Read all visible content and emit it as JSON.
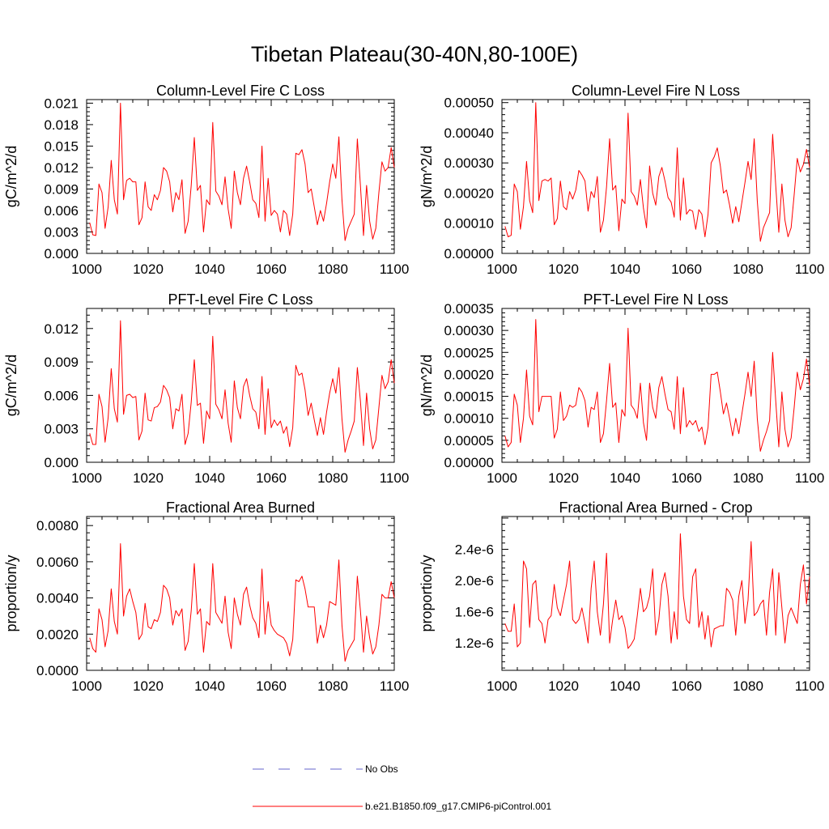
{
  "title": "Tibetan Plateau(30-40N,80-100E)",
  "line_color": "#ff0000",
  "obs_color": "#6666cc",
  "legend": {
    "obs": "No Obs",
    "model": "b.e21.B1850.f09_g17.CMIP6-piControl.001"
  },
  "chart_data": [
    {
      "type": "line",
      "title": "Column-Level Fire C Loss",
      "xlabel": "",
      "ylabel": "gC/m^2/d",
      "xlim": [
        1000,
        1100
      ],
      "ylim": [
        0,
        0.0215
      ],
      "xticks": [
        1000,
        1020,
        1040,
        1060,
        1080,
        1100
      ],
      "yticks": [
        0,
        0.003,
        0.006,
        0.009,
        0.012,
        0.015,
        0.018,
        0.021
      ],
      "ytick_labels": [
        "0.000",
        "0.003",
        "0.006",
        "0.009",
        "0.012",
        "0.015",
        "0.018",
        "0.021"
      ],
      "x_start": 1001,
      "values": [
        0.0043,
        0.0026,
        0.0025,
        0.0097,
        0.0085,
        0.0035,
        0.0065,
        0.013,
        0.0075,
        0.0055,
        0.021,
        0.0075,
        0.0102,
        0.0105,
        0.01,
        0.01,
        0.004,
        0.005,
        0.01,
        0.0065,
        0.006,
        0.0082,
        0.0075,
        0.0088,
        0.012,
        0.0115,
        0.01,
        0.0058,
        0.0085,
        0.0075,
        0.0103,
        0.0028,
        0.0045,
        0.0095,
        0.0162,
        0.0088,
        0.0095,
        0.003,
        0.0075,
        0.0068,
        0.0183,
        0.0087,
        0.008,
        0.0068,
        0.0107,
        0.0062,
        0.0035,
        0.0115,
        0.0085,
        0.0068,
        0.0105,
        0.0122,
        0.01,
        0.0075,
        0.007,
        0.005,
        0.015,
        0.0045,
        0.0105,
        0.0053,
        0.006,
        0.0055,
        0.003,
        0.006,
        0.0055,
        0.0025,
        0.0055,
        0.014,
        0.0138,
        0.0145,
        0.0125,
        0.0085,
        0.009,
        0.0065,
        0.004,
        0.006,
        0.0045,
        0.007,
        0.01,
        0.0125,
        0.0105,
        0.0163,
        0.0075,
        0.0018,
        0.0035,
        0.0045,
        0.0055,
        0.016,
        0.0095,
        0.0025,
        0.0095,
        0.0045,
        0.002,
        0.0035,
        0.0085,
        0.0128,
        0.0115,
        0.012,
        0.0148,
        0.012
      ]
    },
    {
      "type": "line",
      "title": "Column-Level Fire N Loss",
      "xlabel": "",
      "ylabel": "gN/m^2/d",
      "xlim": [
        1000,
        1100
      ],
      "ylim": [
        0,
        0.00051
      ],
      "xticks": [
        1000,
        1020,
        1040,
        1060,
        1080,
        1100
      ],
      "yticks": [
        0,
        0.0001,
        0.0002,
        0.0003,
        0.0004,
        0.0005
      ],
      "ytick_labels": [
        "0.00000",
        "0.00010",
        "0.00020",
        "0.00030",
        "0.00040",
        "0.00050"
      ],
      "x_start": 1001,
      "values": [
        9e-05,
        5.5e-05,
        6e-05,
        0.00023,
        0.000205,
        8e-05,
        0.000155,
        0.000305,
        0.000175,
        0.000135,
        0.0005,
        0.000175,
        0.00024,
        0.000245,
        0.00024,
        0.00025,
        9.5e-05,
        0.000115,
        0.00024,
        0.000155,
        0.000145,
        0.000205,
        0.00018,
        0.00021,
        0.000275,
        0.00026,
        0.00024,
        0.00014,
        0.000205,
        0.000185,
        0.000255,
        7e-05,
        0.00011,
        0.00022,
        0.00038,
        0.00021,
        0.000225,
        7.5e-05,
        0.00018,
        0.000165,
        0.000465,
        0.000205,
        0.00019,
        0.00016,
        0.000245,
        0.00015,
        8.5e-05,
        0.00029,
        0.0002,
        0.00016,
        0.000255,
        0.000285,
        0.00024,
        0.000185,
        0.00017,
        0.00012,
        0.00035,
        0.00011,
        0.00025,
        0.00013,
        0.000145,
        0.00014,
        8e-05,
        0.000145,
        0.00013,
        5.5e-05,
        0.00013,
        0.0003,
        0.00032,
        0.00035,
        0.00029,
        0.0002,
        0.00021,
        0.00016,
        0.0001,
        0.000155,
        0.000105,
        0.00017,
        0.000235,
        0.000305,
        0.000245,
        0.00038,
        0.000175,
        4e-05,
        8.5e-05,
        0.00011,
        0.000135,
        0.000395,
        0.000225,
        7e-05,
        0.00023,
        0.00011,
        5.5e-05,
        8.5e-05,
        0.000195,
        0.000315,
        0.00027,
        0.000295,
        0.000345,
        0.000285
      ]
    },
    {
      "type": "line",
      "title": "PFT-Level Fire C Loss",
      "xlabel": "",
      "ylabel": "gC/m^2/d",
      "xlim": [
        1000,
        1100
      ],
      "ylim": [
        0,
        0.0138
      ],
      "xticks": [
        1000,
        1020,
        1040,
        1060,
        1080,
        1100
      ],
      "yticks": [
        0,
        0.003,
        0.006,
        0.009,
        0.012
      ],
      "ytick_labels": [
        "0.000",
        "0.003",
        "0.006",
        "0.009",
        "0.012"
      ],
      "x_start": 1001,
      "values": [
        0.0026,
        0.0016,
        0.0016,
        0.0061,
        0.005,
        0.0018,
        0.004,
        0.0084,
        0.0048,
        0.0036,
        0.0127,
        0.0043,
        0.006,
        0.0061,
        0.0058,
        0.0059,
        0.002,
        0.0028,
        0.0062,
        0.0038,
        0.0037,
        0.0049,
        0.005,
        0.0054,
        0.0069,
        0.0065,
        0.0058,
        0.003,
        0.0048,
        0.0046,
        0.0061,
        0.0016,
        0.0026,
        0.0054,
        0.0092,
        0.0051,
        0.0053,
        0.0017,
        0.0046,
        0.0039,
        0.0113,
        0.0052,
        0.0047,
        0.0039,
        0.0065,
        0.0035,
        0.0018,
        0.0073,
        0.0049,
        0.0039,
        0.0068,
        0.0075,
        0.006,
        0.0048,
        0.0045,
        0.003,
        0.0077,
        0.0025,
        0.0066,
        0.0031,
        0.0038,
        0.0033,
        0.0037,
        0.0026,
        0.0032,
        0.0014,
        0.0031,
        0.0087,
        0.0078,
        0.008,
        0.0065,
        0.0042,
        0.0053,
        0.0038,
        0.0024,
        0.004,
        0.0025,
        0.0045,
        0.0062,
        0.0075,
        0.0062,
        0.0085,
        0.0039,
        0.0009,
        0.002,
        0.0028,
        0.0037,
        0.0085,
        0.0055,
        0.0015,
        0.0062,
        0.003,
        0.0012,
        0.002,
        0.0049,
        0.0078,
        0.0066,
        0.0072,
        0.0092,
        0.0071
      ]
    },
    {
      "type": "line",
      "title": "PFT-Level Fire N Loss",
      "xlabel": "",
      "ylabel": "gN/m^2/d",
      "xlim": [
        1000,
        1100
      ],
      "ylim": [
        0,
        0.00035
      ],
      "xticks": [
        1000,
        1020,
        1040,
        1060,
        1080,
        1100
      ],
      "yticks": [
        0,
        5e-05,
        0.0001,
        0.00015,
        0.0002,
        0.00025,
        0.0003,
        0.00035
      ],
      "ytick_labels": [
        "0.00000",
        "0.00005",
        "0.00010",
        "0.00015",
        "0.00020",
        "0.00025",
        "0.00030",
        "0.00035"
      ],
      "x_start": 1001,
      "values": [
        6e-05,
        3.5e-05,
        4.5e-05,
        0.000155,
        0.00013,
        4.5e-05,
        0.0001,
        0.00021,
        0.000105,
        8.5e-05,
        0.000325,
        0.000115,
        0.00015,
        0.00015,
        0.00015,
        0.00015,
        5.5e-05,
        7.5e-05,
        0.00016,
        9.5e-05,
        0.000105,
        0.00013,
        0.000125,
        0.00013,
        0.00017,
        0.00016,
        0.00014,
        8e-05,
        0.000125,
        0.00012,
        0.00016,
        4.5e-05,
        6.5e-05,
        0.00014,
        0.000225,
        0.000125,
        0.000135,
        4.5e-05,
        0.00012,
        0.000105,
        0.000305,
        0.00013,
        0.00012,
        0.0001,
        0.00018,
        9e-05,
        5e-05,
        0.00018,
        0.000125,
        0.0001,
        0.00017,
        0.000195,
        0.000155,
        0.00012,
        0.000115,
        7.5e-05,
        0.000195,
        6.5e-05,
        0.00017,
        8e-05,
        9.5e-05,
        8.5e-05,
        9.5e-05,
        7e-05,
        8e-05,
        4e-05,
        8e-05,
        0.0002,
        0.0002,
        0.000205,
        0.00016,
        0.00011,
        0.000135,
        0.0001,
        6e-05,
        0.0001,
        6.5e-05,
        0.00011,
        0.000155,
        0.000205,
        0.00015,
        0.00023,
        0.0001,
        2.5e-05,
        5e-05,
        7e-05,
        9.5e-05,
        0.00025,
        0.00014,
        3.5e-05,
        0.00016,
        7.5e-05,
        3.5e-05,
        5.5e-05,
        0.000125,
        0.000205,
        0.000165,
        0.00019,
        0.000235,
        0.000175
      ]
    },
    {
      "type": "line",
      "title": "Fractional Area Burned",
      "xlabel": "",
      "ylabel": "proportion/y",
      "xlim": [
        1000,
        1100
      ],
      "ylim": [
        0,
        0.0085
      ],
      "xticks": [
        1000,
        1020,
        1040,
        1060,
        1080,
        1100
      ],
      "yticks": [
        0,
        0.002,
        0.004,
        0.006,
        0.008
      ],
      "ytick_labels": [
        "0.0000",
        "0.0020",
        "0.0040",
        "0.0060",
        "0.0080"
      ],
      "x_start": 1001,
      "values": [
        0.0018,
        0.0012,
        0.001,
        0.0034,
        0.0028,
        0.0013,
        0.0022,
        0.0045,
        0.0027,
        0.002,
        0.007,
        0.003,
        0.0041,
        0.0045,
        0.0038,
        0.0032,
        0.0017,
        0.002,
        0.0037,
        0.0024,
        0.0023,
        0.0028,
        0.0027,
        0.0032,
        0.0047,
        0.0045,
        0.004,
        0.0025,
        0.0033,
        0.003,
        0.0034,
        0.0011,
        0.0016,
        0.0033,
        0.0059,
        0.0031,
        0.0034,
        0.001,
        0.0027,
        0.0025,
        0.0059,
        0.0032,
        0.0029,
        0.0026,
        0.0041,
        0.0021,
        0.0012,
        0.004,
        0.0031,
        0.0025,
        0.0042,
        0.0046,
        0.0036,
        0.0029,
        0.0026,
        0.0018,
        0.0056,
        0.002,
        0.0038,
        0.0025,
        0.0022,
        0.002,
        0.0019,
        0.0018,
        0.0015,
        0.0008,
        0.0017,
        0.005,
        0.0049,
        0.0052,
        0.0045,
        0.0035,
        0.0035,
        0.0035,
        0.0015,
        0.0025,
        0.0018,
        0.0025,
        0.0038,
        0.0037,
        0.0036,
        0.0061,
        0.0025,
        0.0005,
        0.0011,
        0.0014,
        0.0017,
        0.0052,
        0.0033,
        0.001,
        0.003,
        0.0018,
        0.0009,
        0.0013,
        0.0025,
        0.0042,
        0.004,
        0.004,
        0.0049,
        0.004
      ]
    },
    {
      "type": "line",
      "title": "Fractional Area Burned - Crop",
      "xlabel": "",
      "ylabel": "proportion/y",
      "xlim": [
        1000,
        1100
      ],
      "ylim": [
        8.5e-07,
        2.82e-06
      ],
      "xticks": [
        1000,
        1020,
        1040,
        1060,
        1080,
        1100
      ],
      "yticks": [
        1.2e-06,
        1.6e-06,
        2e-06,
        2.4e-06
      ],
      "ytick_labels": [
        "1.2e-6",
        "1.6e-6",
        "2.0e-6",
        "2.4e-6"
      ],
      "x_start": 1001,
      "values": [
        1.45e-06,
        1.35e-06,
        1.35e-06,
        1.7e-06,
        1.15e-06,
        1.2e-06,
        2.25e-06,
        2.15e-06,
        1.4e-06,
        1.95e-06,
        2e-06,
        1.5e-06,
        1.45e-06,
        1.2e-06,
        1.5e-06,
        1.55e-06,
        1.95e-06,
        1.65e-06,
        1.55e-06,
        1.75e-06,
        1.95e-06,
        2.25e-06,
        1.5e-06,
        1.45e-06,
        1.5e-06,
        1.65e-06,
        1.45e-06,
        1.2e-06,
        1.9e-06,
        2.25e-06,
        1.6e-06,
        1.3e-06,
        1.7e-06,
        2.35e-06,
        1.2e-06,
        1.5e-06,
        1.75e-06,
        1.5e-06,
        1.55e-06,
        1.4e-06,
        1.13e-06,
        1.18e-06,
        1.25e-06,
        1.55e-06,
        1.9e-06,
        1.6e-06,
        1.65e-06,
        1.8e-06,
        2.15e-06,
        1.3e-06,
        1.5e-06,
        1.95e-06,
        2.1e-06,
        1.8e-06,
        1.2e-06,
        1.6e-06,
        1.25e-06,
        2.6e-06,
        1.8e-06,
        1.5e-06,
        1.45e-06,
        2.05e-06,
        2.15e-06,
        1.4e-06,
        1.6e-06,
        1.25e-06,
        1.55e-06,
        1.15e-06,
        1.38e-06,
        1.4e-06,
        1.42e-06,
        1.42e-06,
        1.9e-06,
        1.85e-06,
        1.75e-06,
        1.3e-06,
        1.8e-06,
        2e-06,
        1.45e-06,
        1.75e-06,
        2.5e-06,
        1.55e-06,
        1.6e-06,
        1.7e-06,
        1.75e-06,
        1.3e-06,
        1.85e-06,
        2.15e-06,
        1.3e-06,
        2.1e-06,
        1.65e-06,
        1.2e-06,
        1.55e-06,
        1.65e-06,
        1.55e-06,
        1.45e-06,
        1.95e-06,
        2.2e-06,
        1.7e-06,
        2.05e-06
      ]
    }
  ]
}
